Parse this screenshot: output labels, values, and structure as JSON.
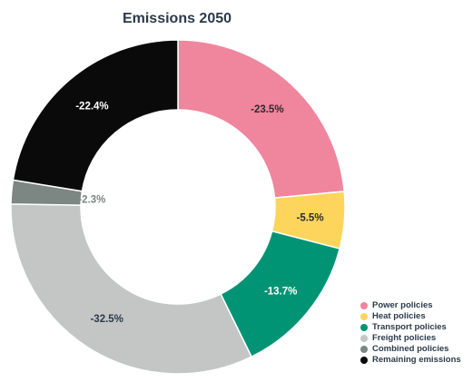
{
  "chart_data": {
    "type": "pie",
    "title": "Emissions 2050",
    "categories": [
      "Power policies",
      "Heat policies",
      "Transport policies",
      "Freight policies",
      "Combined policies",
      "Remaining emissions"
    ],
    "values": [
      23.5,
      5.5,
      13.7,
      32.5,
      2.3,
      22.4
    ],
    "labels": [
      "-23.5%",
      "-5.5%",
      "-13.7%",
      "-32.5%",
      "-2.3%",
      "-22.4%"
    ],
    "colors": [
      "#f0859e",
      "#fdd55c",
      "#009474",
      "#c3c6c5",
      "#7c8683",
      "#0a0a0a"
    ],
    "label_colors": [
      "#2b2b2b",
      "#2b2b2b",
      "#ffffff",
      "#2b3a4a",
      "#7c8683",
      "#ffffff"
    ],
    "legend": "bottom-right"
  }
}
